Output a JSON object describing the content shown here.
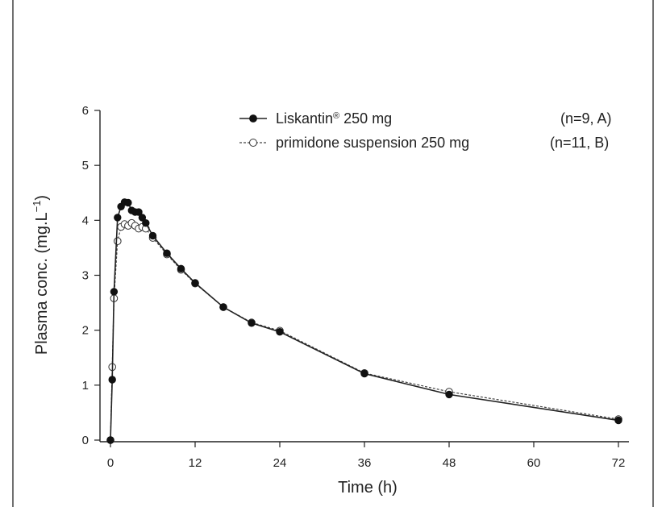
{
  "chart_data": {
    "type": "line",
    "xlabel": "Time (h)",
    "ylabel": "Plasma conc. (mg.L",
    "ylabel_sup": "−1",
    "ylabel_close": ")",
    "xlim": [
      0,
      72
    ],
    "ylim": [
      0,
      6
    ],
    "xticks": [
      0,
      12,
      24,
      36,
      48,
      60,
      72
    ],
    "yticks": [
      0,
      1,
      2,
      3,
      4,
      5,
      6
    ],
    "grid": false,
    "legend": "top-right",
    "series": [
      {
        "name": "Liskantin",
        "name_sup": "®",
        "name_rest": " 250 mg",
        "note": "(n=9, A)",
        "marker": "filled-circle",
        "line": "solid",
        "color": "#111111",
        "x": [
          0,
          0.25,
          0.5,
          1,
          1.5,
          2,
          2.5,
          3,
          3.5,
          4,
          4.5,
          5,
          6,
          8,
          10,
          12,
          16,
          20,
          24,
          36,
          48,
          72
        ],
        "y": [
          0,
          1.1,
          2.7,
          4.05,
          4.25,
          4.33,
          4.32,
          4.18,
          4.15,
          4.15,
          4.05,
          3.95,
          3.72,
          3.4,
          3.12,
          2.86,
          2.42,
          2.13,
          1.97,
          1.21,
          0.83,
          0.36
        ]
      },
      {
        "name": "primidone suspension 250 mg",
        "note": "(n=11, B)",
        "marker": "open-circle",
        "line": "dashed",
        "color": "#333333",
        "x": [
          0,
          0.25,
          0.5,
          1,
          1.5,
          2,
          2.5,
          3,
          3.5,
          4,
          4.5,
          5,
          6,
          8,
          10,
          12,
          16,
          20,
          24,
          36,
          48,
          72
        ],
        "y": [
          0,
          1.33,
          2.58,
          3.62,
          3.88,
          3.93,
          3.9,
          3.95,
          3.9,
          3.85,
          3.88,
          3.85,
          3.68,
          3.38,
          3.1,
          2.85,
          2.42,
          2.14,
          1.99,
          1.22,
          0.88,
          0.38
        ]
      }
    ]
  }
}
